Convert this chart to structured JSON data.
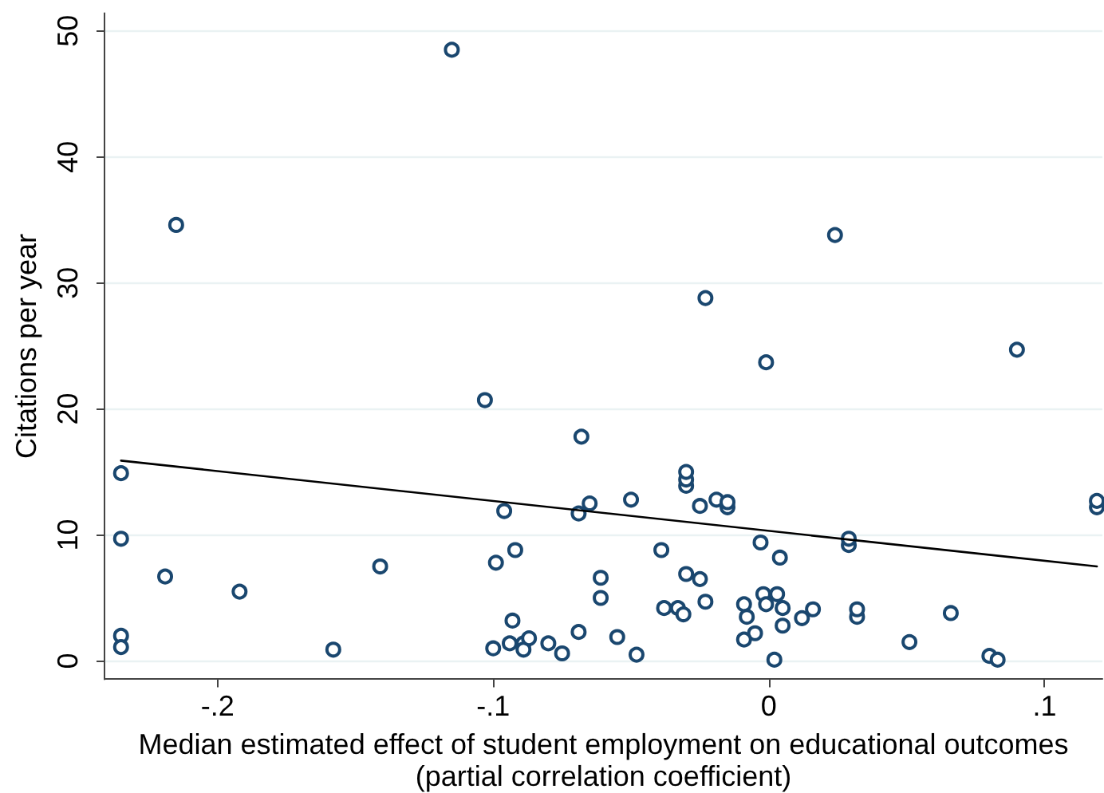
{
  "chart_data": {
    "type": "scatter",
    "xlabel": "Median estimated effect of student employment on educational outcomes\n(partial correlation coefficient)",
    "ylabel": "Citations per year",
    "series": [
      {
        "color": "#1a476f",
        "x": [
          -0.215,
          -0.115,
          -0.023,
          0.024,
          0.09,
          -0.235,
          -0.235,
          -0.219,
          -0.192,
          -0.141,
          -0.235,
          -0.235,
          -0.158,
          -0.001,
          -0.103,
          -0.068,
          -0.03,
          -0.03,
          -0.03,
          -0.096,
          -0.069,
          -0.065,
          -0.05,
          -0.025,
          -0.019,
          -0.015,
          -0.015,
          -0.003,
          0.004,
          -0.099,
          -0.092,
          -0.039,
          -0.061,
          -0.061,
          -0.03,
          -0.025,
          -0.023,
          -0.038,
          -0.033,
          -0.031,
          -0.009,
          -0.008,
          -0.002,
          0.003,
          -0.001,
          0.005,
          0.005,
          -0.005,
          -0.009,
          0.002,
          -0.093,
          -0.1,
          -0.094,
          -0.089,
          -0.089,
          -0.087,
          -0.08,
          -0.075,
          -0.069,
          -0.055,
          -0.048,
          0.119,
          0.119,
          0.029,
          0.029,
          0.012,
          0.016,
          0.032,
          0.032,
          0.066,
          0.051,
          0.08,
          0.083
        ],
        "values": [
          34.6,
          48.5,
          28.8,
          33.8,
          24.7,
          14.9,
          9.7,
          6.7,
          5.5,
          7.5,
          2.0,
          1.1,
          0.9,
          23.7,
          20.7,
          17.8,
          13.9,
          14.4,
          15.0,
          11.9,
          11.7,
          12.5,
          12.8,
          12.3,
          12.8,
          12.2,
          12.6,
          9.4,
          8.2,
          7.8,
          8.8,
          8.8,
          6.6,
          5.0,
          6.9,
          6.5,
          4.7,
          4.2,
          4.2,
          3.7,
          4.5,
          3.5,
          5.3,
          5.3,
          4.5,
          4.2,
          2.8,
          2.2,
          1.7,
          0.1,
          3.2,
          1.0,
          1.4,
          1.4,
          0.9,
          1.8,
          1.4,
          0.6,
          2.3,
          1.9,
          0.5,
          12.2,
          12.7,
          9.2,
          9.7,
          3.4,
          4.1,
          3.5,
          4.1,
          3.8,
          1.5,
          0.4,
          0.1
        ]
      },
      {
        "type": "line",
        "color": "#000000",
        "marker": "none",
        "line_style": "solid",
        "x": [
          -0.235,
          0.119
        ],
        "values": [
          15.9,
          7.5
        ]
      }
    ],
    "xlim": [
      -0.241,
      0.121
    ],
    "xticks": [
      {
        "value": -0.2,
        "label": "-.2"
      },
      {
        "value": -0.1,
        "label": "-.1"
      },
      0,
      {
        "value": 0.1,
        "label": ".1"
      }
    ],
    "ylim": [
      -1.45,
      51.4
    ],
    "yticks": [
      0,
      10,
      20,
      30,
      40,
      50
    ],
    "grid": "y",
    "marker": "circle"
  }
}
